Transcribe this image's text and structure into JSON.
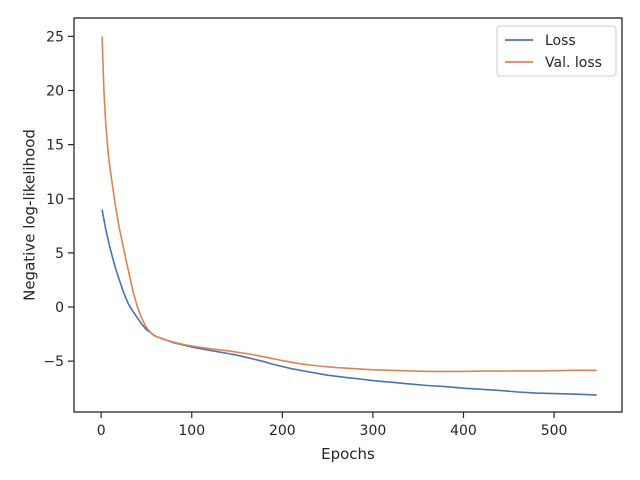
{
  "chart_data": {
    "type": "line",
    "title": "",
    "xlabel": "Epochs",
    "ylabel": "Negative log-likelihood",
    "xlim": [
      -30,
      575
    ],
    "ylim": [
      -9.7,
      26.7
    ],
    "xticks": [
      0,
      100,
      200,
      300,
      400,
      500
    ],
    "yticks": [
      -5,
      0,
      5,
      10,
      15,
      20,
      25
    ],
    "grid": false,
    "legend_position": "top-right",
    "series": [
      {
        "name": "Loss",
        "color": "#4c72b0",
        "points": [
          [
            1,
            9.0
          ],
          [
            5,
            7.2
          ],
          [
            10,
            5.4
          ],
          [
            15,
            3.8
          ],
          [
            20,
            2.5
          ],
          [
            25,
            1.3
          ],
          [
            30,
            0.3
          ],
          [
            35,
            -0.4
          ],
          [
            40,
            -1.0
          ],
          [
            45,
            -1.6
          ],
          [
            50,
            -2.1
          ],
          [
            55,
            -2.4
          ],
          [
            60,
            -2.7
          ],
          [
            70,
            -3.0
          ],
          [
            80,
            -3.3
          ],
          [
            90,
            -3.5
          ],
          [
            100,
            -3.7
          ],
          [
            110,
            -3.85
          ],
          [
            120,
            -4.0
          ],
          [
            130,
            -4.15
          ],
          [
            140,
            -4.3
          ],
          [
            150,
            -4.45
          ],
          [
            160,
            -4.65
          ],
          [
            170,
            -4.85
          ],
          [
            180,
            -5.05
          ],
          [
            190,
            -5.3
          ],
          [
            200,
            -5.5
          ],
          [
            210,
            -5.7
          ],
          [
            220,
            -5.85
          ],
          [
            230,
            -6.0
          ],
          [
            240,
            -6.15
          ],
          [
            250,
            -6.3
          ],
          [
            260,
            -6.4
          ],
          [
            270,
            -6.5
          ],
          [
            280,
            -6.6
          ],
          [
            290,
            -6.7
          ],
          [
            300,
            -6.8
          ],
          [
            320,
            -6.95
          ],
          [
            340,
            -7.1
          ],
          [
            360,
            -7.25
          ],
          [
            380,
            -7.35
          ],
          [
            400,
            -7.5
          ],
          [
            420,
            -7.6
          ],
          [
            440,
            -7.7
          ],
          [
            460,
            -7.85
          ],
          [
            480,
            -7.95
          ],
          [
            500,
            -8.0
          ],
          [
            520,
            -8.05
          ],
          [
            540,
            -8.1
          ],
          [
            547,
            -8.15
          ]
        ]
      },
      {
        "name": "Val. loss",
        "color": "#dd8452",
        "points": [
          [
            1,
            25.0
          ],
          [
            3,
            20.0
          ],
          [
            5,
            17.0
          ],
          [
            8,
            14.0
          ],
          [
            12,
            11.5
          ],
          [
            16,
            9.2
          ],
          [
            20,
            7.3
          ],
          [
            25,
            5.3
          ],
          [
            30,
            3.4
          ],
          [
            35,
            1.5
          ],
          [
            40,
            0.0
          ],
          [
            45,
            -1.1
          ],
          [
            50,
            -1.9
          ],
          [
            55,
            -2.4
          ],
          [
            60,
            -2.7
          ],
          [
            70,
            -3.0
          ],
          [
            80,
            -3.25
          ],
          [
            90,
            -3.45
          ],
          [
            100,
            -3.6
          ],
          [
            120,
            -3.85
          ],
          [
            140,
            -4.05
          ],
          [
            160,
            -4.3
          ],
          [
            180,
            -4.6
          ],
          [
            200,
            -4.95
          ],
          [
            220,
            -5.25
          ],
          [
            240,
            -5.45
          ],
          [
            260,
            -5.6
          ],
          [
            280,
            -5.7
          ],
          [
            300,
            -5.8
          ],
          [
            320,
            -5.85
          ],
          [
            340,
            -5.9
          ],
          [
            360,
            -5.95
          ],
          [
            380,
            -5.95
          ],
          [
            400,
            -5.95
          ],
          [
            420,
            -5.92
          ],
          [
            440,
            -5.92
          ],
          [
            460,
            -5.9
          ],
          [
            480,
            -5.9
          ],
          [
            500,
            -5.88
          ],
          [
            520,
            -5.85
          ],
          [
            540,
            -5.85
          ],
          [
            547,
            -5.85
          ]
        ]
      }
    ]
  }
}
